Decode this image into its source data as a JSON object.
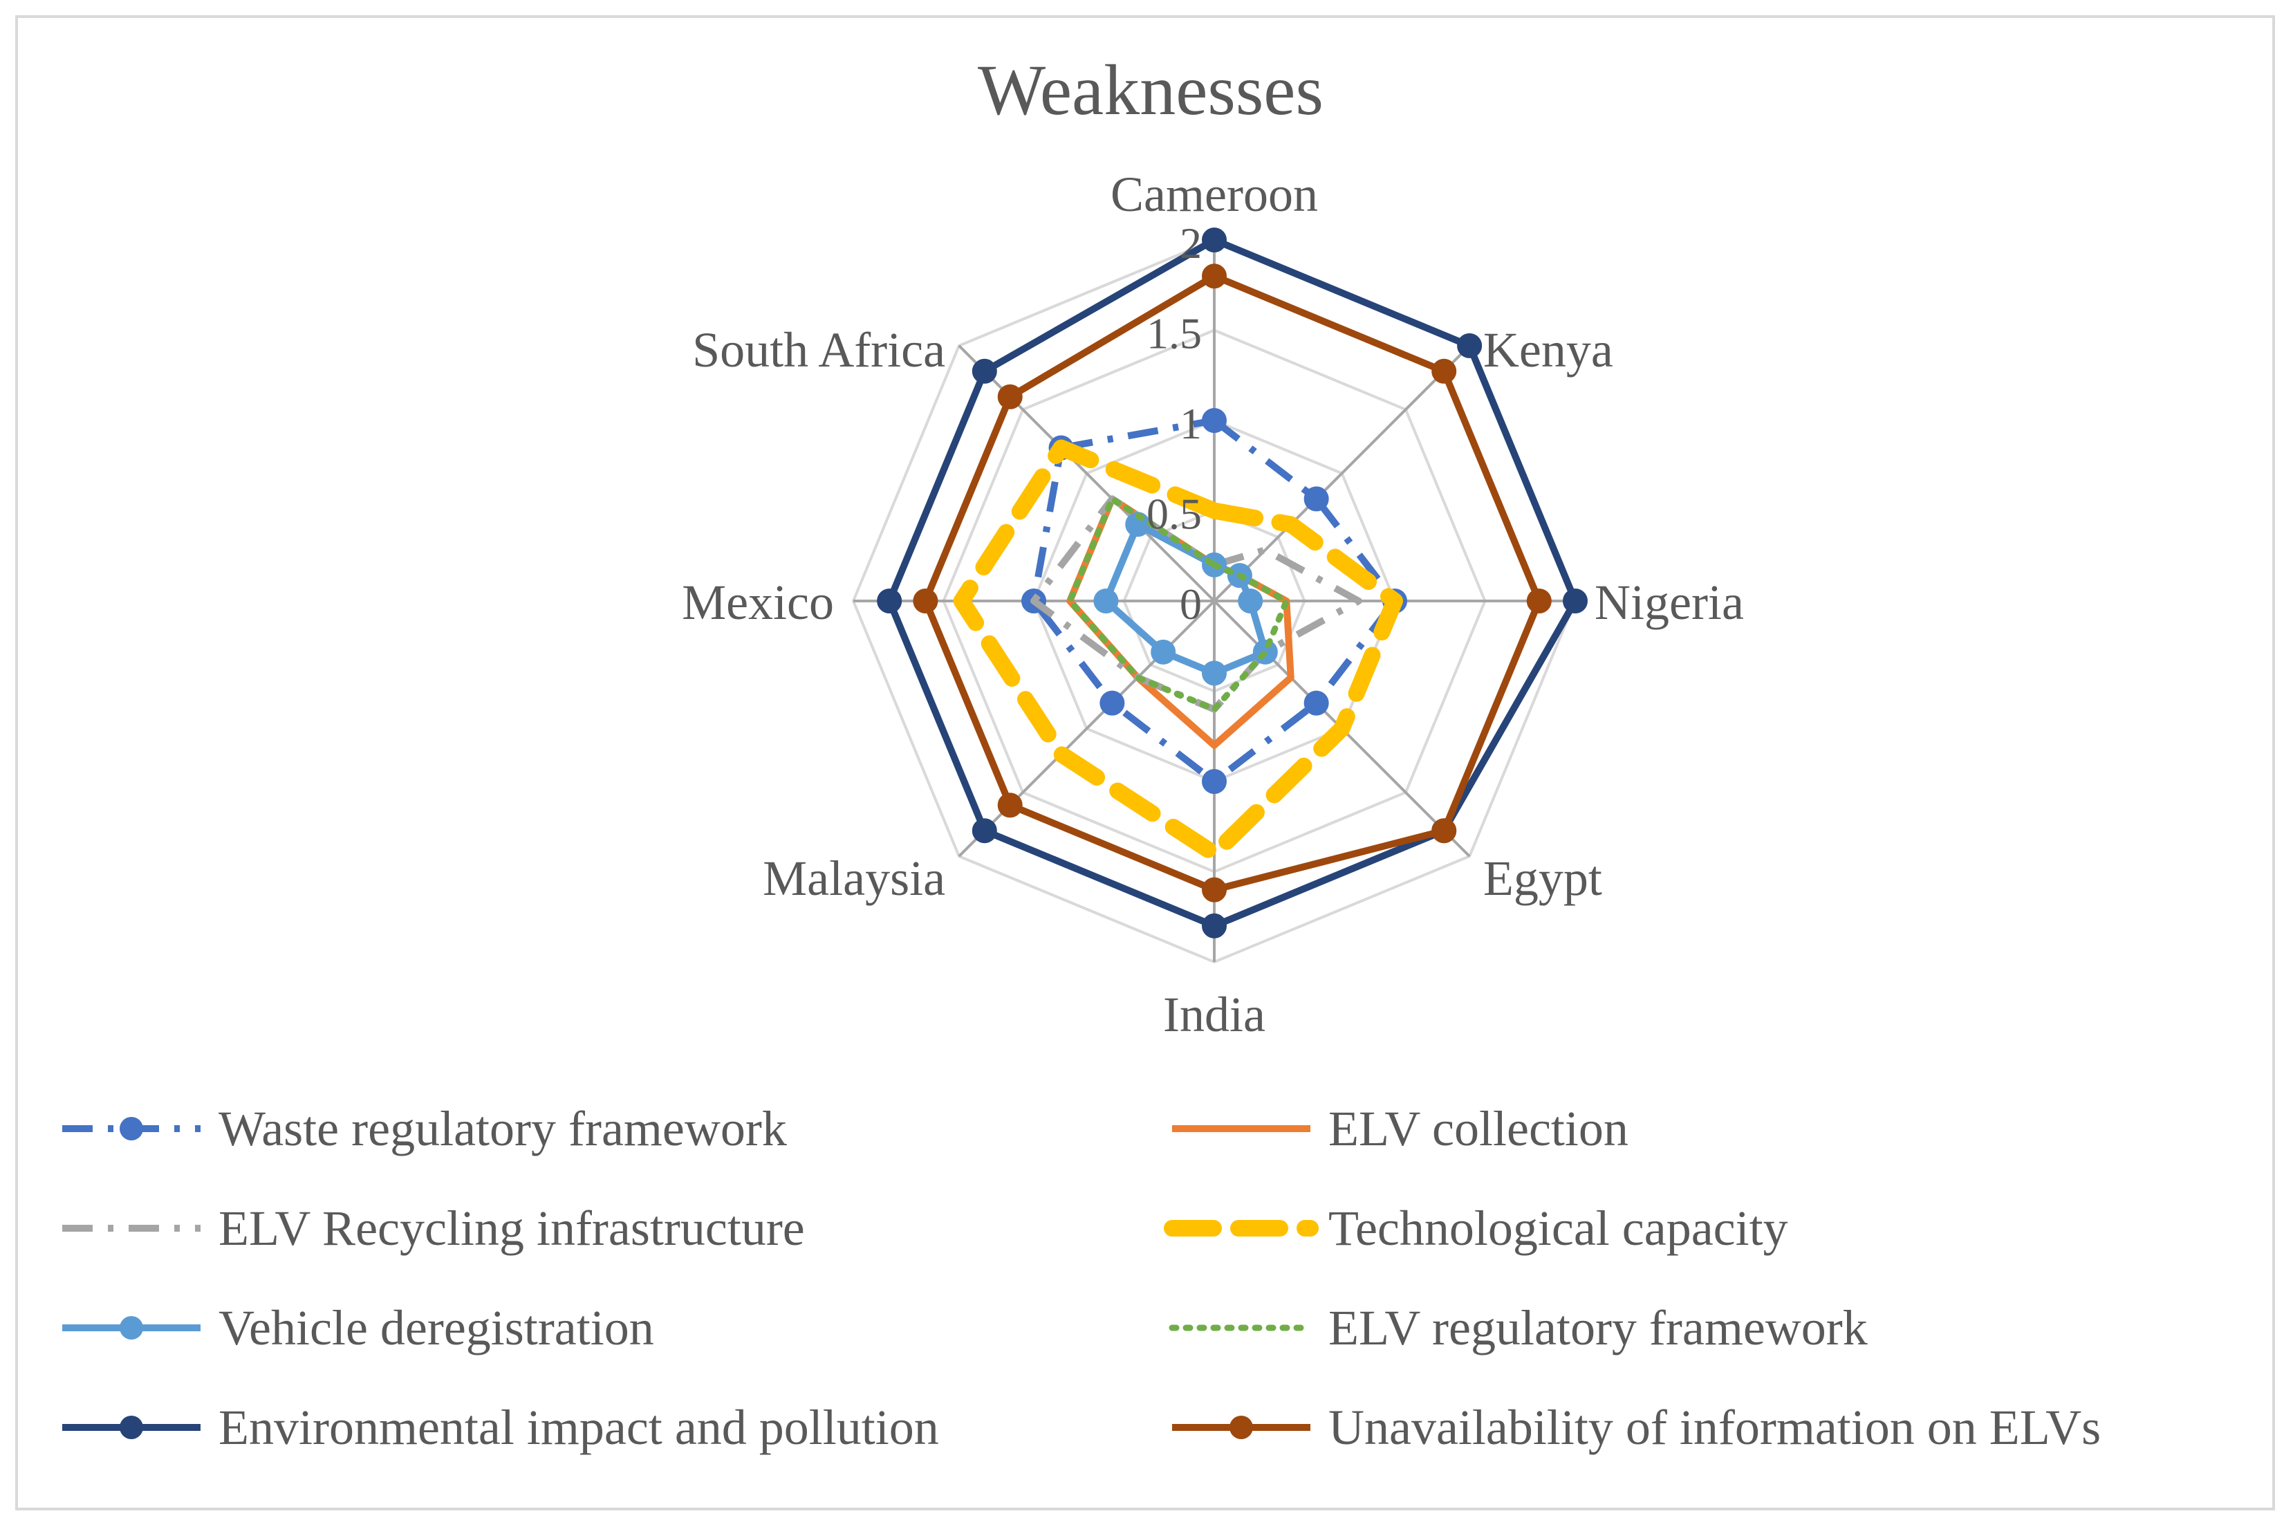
{
  "chart_data": {
    "type": "radar",
    "title": "Weaknesses",
    "categories": [
      "Cameroon",
      "Kenya",
      "Nigeria",
      "Egypt",
      "India",
      "Malaysia",
      "Mexico",
      "South Africa"
    ],
    "rlim": [
      0,
      2
    ],
    "ticks": [
      "0",
      "0.5",
      "1",
      "1.5",
      "2"
    ],
    "grid": true,
    "legend_position": "bottom",
    "series": [
      {
        "name": "Waste regulatory framework",
        "values": [
          1,
          0.8,
          1,
          0.8,
          1,
          0.8,
          1,
          1.2
        ],
        "color": "#4472c4",
        "style": "dash-dot",
        "marker": true
      },
      {
        "name": "ELV collection",
        "values": [
          0.2,
          0.2,
          0.4,
          0.6,
          0.8,
          0.6,
          0.8,
          0.8
        ],
        "color": "#ed7d31",
        "style": "solid",
        "marker": false
      },
      {
        "name": "ELV Recycling infrastructure",
        "values": [
          0.2,
          0.4,
          0.8,
          0.4,
          0.6,
          0.6,
          1,
          0.8
        ],
        "color": "#a5a5a5",
        "style": "dash-dot",
        "marker": false
      },
      {
        "name": "Technological capacity",
        "values": [
          0.5,
          0.6,
          1,
          1,
          1.4,
          1.2,
          1.4,
          1.2
        ],
        "color": "#ffc000",
        "style": "long-dash",
        "marker": false
      },
      {
        "name": "Vehicle deregistration",
        "values": [
          0.2,
          0.2,
          0.2,
          0.4,
          0.4,
          0.4,
          0.6,
          0.6
        ],
        "color": "#5b9bd5",
        "style": "solid",
        "marker": true
      },
      {
        "name": "ELV regulatory framework",
        "values": [
          0.2,
          0.2,
          0.4,
          0.4,
          0.6,
          0.6,
          0.8,
          0.8
        ],
        "color": "#70ad47",
        "style": "dotted",
        "marker": false
      },
      {
        "name": "Environmental impact and pollution",
        "values": [
          2,
          2,
          2,
          1.8,
          1.8,
          1.8,
          1.8,
          1.8
        ],
        "color": "#264478",
        "style": "solid",
        "marker": true
      },
      {
        "name": "Unavailability of information on ELVs",
        "values": [
          1.8,
          1.8,
          1.8,
          1.8,
          1.6,
          1.6,
          1.6,
          1.6
        ],
        "color": "#9e480e",
        "style": "solid",
        "marker": true
      }
    ]
  }
}
